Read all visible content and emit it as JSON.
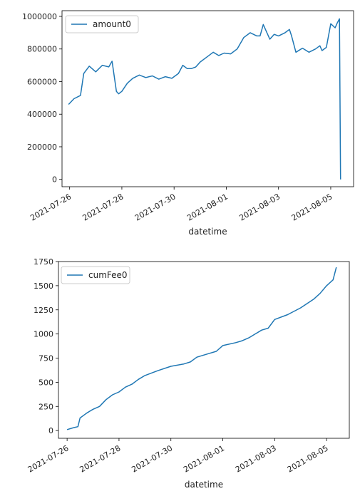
{
  "colors": {
    "series": "#1f77b4",
    "frame": "#000000",
    "text": "#222222"
  },
  "chart_data": [
    {
      "type": "line",
      "xlabel": "datetime",
      "ylabel": "",
      "xlim": [
        "2021-07-25T17:00",
        "2021-08-05T21:00"
      ],
      "ylim": [
        -45000,
        1035000
      ],
      "grid": false,
      "legend": "top-left",
      "x_ticks": [
        "2021-07-26",
        "2021-07-28",
        "2021-07-30",
        "2021-08-01",
        "2021-08-03",
        "2021-08-05"
      ],
      "y_ticks": [
        "0",
        "200000",
        "400000",
        "600000",
        "800000",
        "1000000"
      ],
      "series": [
        {
          "name": "amount0",
          "x": [
            "2021-07-25T23:00",
            "2021-07-26T04:00",
            "2021-07-26T10:00",
            "2021-07-26T13:00",
            "2021-07-26T18:00",
            "2021-07-27T00:00",
            "2021-07-27T06:00",
            "2021-07-27T12:00",
            "2021-07-27T15:00",
            "2021-07-27T19:00",
            "2021-07-27T21:00",
            "2021-07-28T00:00",
            "2021-07-28T05:00",
            "2021-07-28T10:00",
            "2021-07-28T16:00",
            "2021-07-28T22:00",
            "2021-07-29T04:00",
            "2021-07-29T10:00",
            "2021-07-29T16:00",
            "2021-07-29T22:00",
            "2021-07-30T04:00",
            "2021-07-30T08:00",
            "2021-07-30T12:00",
            "2021-07-30T16:00",
            "2021-07-30T20:00",
            "2021-07-31T00:00",
            "2021-07-31T06:00",
            "2021-07-31T12:00",
            "2021-07-31T17:00",
            "2021-07-31T22:00",
            "2021-08-01T04:00",
            "2021-08-01T10:00",
            "2021-08-01T16:00",
            "2021-08-01T22:00",
            "2021-08-02T04:00",
            "2021-08-02T07:00",
            "2021-08-02T10:00",
            "2021-08-02T16:00",
            "2021-08-02T20:00",
            "2021-08-03T00:00",
            "2021-08-03T06:00",
            "2021-08-03T10:00",
            "2021-08-03T12:00",
            "2021-08-03T16:00",
            "2021-08-03T22:00",
            "2021-08-04T04:00",
            "2021-08-04T10:00",
            "2021-08-04T14:00",
            "2021-08-04T16:00",
            "2021-08-04T20:00",
            "2021-08-05T00:00",
            "2021-08-05T04:00",
            "2021-08-05T06:00",
            "2021-08-05T08:00",
            "2021-08-05T09:00"
          ],
          "values": [
            460000,
            495000,
            515000,
            650000,
            695000,
            660000,
            700000,
            690000,
            725000,
            540000,
            525000,
            540000,
            590000,
            620000,
            640000,
            625000,
            635000,
            615000,
            630000,
            620000,
            650000,
            700000,
            680000,
            680000,
            690000,
            720000,
            750000,
            780000,
            760000,
            775000,
            770000,
            800000,
            870000,
            900000,
            880000,
            880000,
            950000,
            860000,
            890000,
            880000,
            900000,
            920000,
            880000,
            780000,
            805000,
            780000,
            800000,
            820000,
            790000,
            810000,
            955000,
            930000,
            960000,
            985000,
            0
          ]
        }
      ]
    },
    {
      "type": "line",
      "xlabel": "datetime",
      "ylabel": "",
      "xlim": [
        "2021-07-25T16:00",
        "2021-08-05T21:00"
      ],
      "ylim": [
        -80,
        1750
      ],
      "grid": false,
      "legend": "top-left",
      "x_ticks": [
        "2021-07-26",
        "2021-07-28",
        "2021-07-30",
        "2021-08-01",
        "2021-08-03",
        "2021-08-05"
      ],
      "y_ticks": [
        "0",
        "250",
        "500",
        "750",
        "1000",
        "1250",
        "1500",
        "1750"
      ],
      "series": [
        {
          "name": "cumFee0",
          "x": [
            "2021-07-26T00:00",
            "2021-07-26T06:00",
            "2021-07-26T10:00",
            "2021-07-26T12:00",
            "2021-07-26T18:00",
            "2021-07-27T00:00",
            "2021-07-27T06:00",
            "2021-07-27T12:00",
            "2021-07-27T18:00",
            "2021-07-28T00:00",
            "2021-07-28T06:00",
            "2021-07-28T12:00",
            "2021-07-28T18:00",
            "2021-07-29T00:00",
            "2021-07-29T12:00",
            "2021-07-30T00:00",
            "2021-07-30T12:00",
            "2021-07-30T18:00",
            "2021-07-31T00:00",
            "2021-07-31T12:00",
            "2021-07-31T18:00",
            "2021-08-01T00:00",
            "2021-08-01T12:00",
            "2021-08-01T18:00",
            "2021-08-02T00:00",
            "2021-08-02T06:00",
            "2021-08-02T12:00",
            "2021-08-02T18:00",
            "2021-08-03T00:00",
            "2021-08-03T12:00",
            "2021-08-04T00:00",
            "2021-08-04T12:00",
            "2021-08-04T18:00",
            "2021-08-05T00:00",
            "2021-08-05T06:00",
            "2021-08-05T09:00"
          ],
          "values": [
            10,
            30,
            40,
            130,
            180,
            220,
            250,
            320,
            370,
            400,
            450,
            480,
            530,
            570,
            620,
            665,
            690,
            710,
            760,
            800,
            820,
            880,
            910,
            930,
            960,
            1000,
            1040,
            1060,
            1150,
            1200,
            1270,
            1360,
            1420,
            1500,
            1560,
            1690
          ]
        }
      ]
    }
  ]
}
